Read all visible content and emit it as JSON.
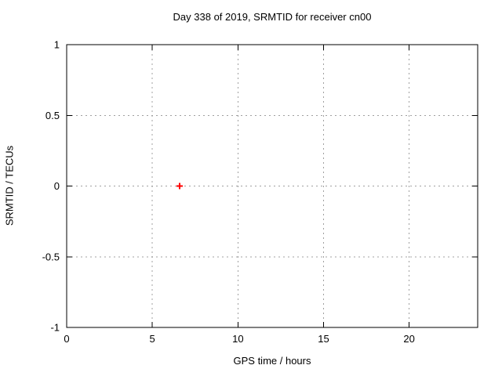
{
  "chart_data": {
    "type": "scatter",
    "title": "Day 338 of 2019, SRMTID for receiver cn00",
    "xlabel": "GPS time / hours",
    "ylabel": "SRMTID / TECUs",
    "xlim": [
      0,
      24
    ],
    "ylim": [
      -1,
      1
    ],
    "xticks": [
      0,
      5,
      10,
      15,
      20
    ],
    "yticks": [
      -1,
      -0.5,
      0,
      0.5,
      1
    ],
    "grid": true,
    "grid_style": "dotted",
    "legend": "none",
    "series": [
      {
        "name": "SRMTID",
        "marker": "plus",
        "color": "#ff0000",
        "points": [
          [
            6.6,
            0.0
          ]
        ]
      }
    ],
    "colors": {
      "axis": "#000000",
      "grid": "#a0a0a0",
      "background": "#ffffff",
      "point": "#ff0000"
    }
  }
}
